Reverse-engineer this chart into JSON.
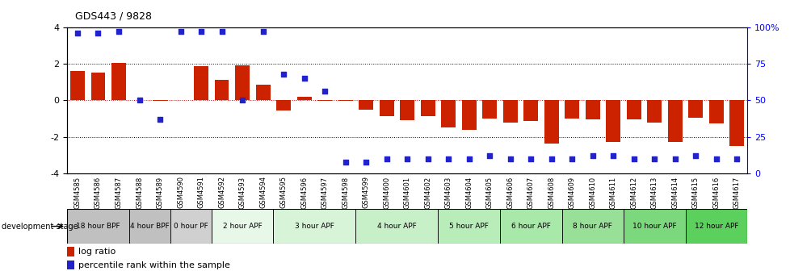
{
  "title": "GDS443 / 9828",
  "samples": [
    "GSM4585",
    "GSM4586",
    "GSM4587",
    "GSM4588",
    "GSM4589",
    "GSM4590",
    "GSM4591",
    "GSM4592",
    "GSM4593",
    "GSM4594",
    "GSM4595",
    "GSM4596",
    "GSM4597",
    "GSM4598",
    "GSM4599",
    "GSM4600",
    "GSM4601",
    "GSM4602",
    "GSM4603",
    "GSM4604",
    "GSM4605",
    "GSM4606",
    "GSM4607",
    "GSM4608",
    "GSM4609",
    "GSM4610",
    "GSM4611",
    "GSM4612",
    "GSM4613",
    "GSM4614",
    "GSM4615",
    "GSM4616",
    "GSM4617"
  ],
  "log_ratio": [
    1.6,
    1.5,
    2.05,
    0.02,
    -0.05,
    0.02,
    1.85,
    1.1,
    1.9,
    0.85,
    -0.55,
    0.18,
    -0.05,
    -0.05,
    -0.5,
    -0.85,
    -1.1,
    -0.85,
    -1.5,
    -1.6,
    -1.0,
    -1.2,
    -1.15,
    -2.35,
    -1.0,
    -1.05,
    -2.3,
    -1.05,
    -1.2,
    -2.3,
    -0.95,
    -1.25,
    -2.5
  ],
  "percentile": [
    96,
    96,
    97,
    50,
    37,
    97,
    97,
    97,
    50,
    97,
    68,
    65,
    56,
    8,
    8,
    10,
    10,
    10,
    10,
    10,
    12,
    10,
    10,
    10,
    10,
    12,
    12,
    10,
    10,
    10,
    12,
    10,
    10
  ],
  "stages": [
    {
      "label": "18 hour BPF",
      "start": 0,
      "end": 3,
      "color": "#c0c0c0"
    },
    {
      "label": "4 hour BPF",
      "start": 3,
      "end": 5,
      "color": "#c0c0c0"
    },
    {
      "label": "0 hour PF",
      "start": 5,
      "end": 7,
      "color": "#d0d0d0"
    },
    {
      "label": "2 hour APF",
      "start": 7,
      "end": 10,
      "color": "#e8f8e8"
    },
    {
      "label": "3 hour APF",
      "start": 10,
      "end": 14,
      "color": "#d8f4d8"
    },
    {
      "label": "4 hour APF",
      "start": 14,
      "end": 18,
      "color": "#c8f0c8"
    },
    {
      "label": "5 hour APF",
      "start": 18,
      "end": 21,
      "color": "#b8ecb8"
    },
    {
      "label": "6 hour APF",
      "start": 21,
      "end": 24,
      "color": "#a8e8a8"
    },
    {
      "label": "8 hour APF",
      "start": 24,
      "end": 27,
      "color": "#98e098"
    },
    {
      "label": "10 hour APF",
      "start": 27,
      "end": 30,
      "color": "#7cd87c"
    },
    {
      "label": "12 hour APF",
      "start": 30,
      "end": 33,
      "color": "#5cd05c"
    }
  ],
  "bar_color": "#cc2200",
  "dot_color": "#2222cc",
  "ylim": [
    -4,
    4
  ],
  "right_yticks_pct": [
    0,
    25,
    50,
    75,
    100
  ],
  "right_ylabels": [
    "0",
    "25",
    "50",
    "75",
    "100%"
  ],
  "left_yticks": [
    -4,
    -2,
    0,
    2,
    4
  ],
  "zero_line_color": "#cc0000"
}
